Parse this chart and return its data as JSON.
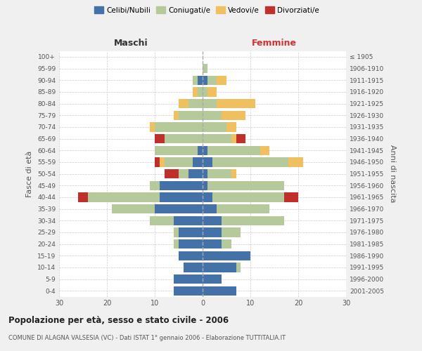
{
  "age_groups": [
    "0-4",
    "5-9",
    "10-14",
    "15-19",
    "20-24",
    "25-29",
    "30-34",
    "35-39",
    "40-44",
    "45-49",
    "50-54",
    "55-59",
    "60-64",
    "65-69",
    "70-74",
    "75-79",
    "80-84",
    "85-89",
    "90-94",
    "95-99",
    "100+"
  ],
  "birth_years": [
    "2001-2005",
    "1996-2000",
    "1991-1995",
    "1986-1990",
    "1981-1985",
    "1976-1980",
    "1971-1975",
    "1966-1970",
    "1961-1965",
    "1956-1960",
    "1951-1955",
    "1946-1950",
    "1941-1945",
    "1936-1940",
    "1931-1935",
    "1926-1930",
    "1921-1925",
    "1916-1920",
    "1911-1915",
    "1906-1910",
    "≤ 1905"
  ],
  "maschi": {
    "celibi": [
      6,
      6,
      4,
      5,
      5,
      5,
      6,
      10,
      9,
      9,
      3,
      2,
      1,
      0,
      0,
      0,
      0,
      0,
      1,
      0,
      0
    ],
    "coniugati": [
      0,
      0,
      0,
      0,
      1,
      1,
      5,
      9,
      15,
      2,
      2,
      6,
      9,
      8,
      10,
      5,
      3,
      1,
      1,
      0,
      0
    ],
    "vedovi": [
      0,
      0,
      0,
      0,
      0,
      0,
      0,
      0,
      0,
      0,
      0,
      1,
      0,
      0,
      1,
      1,
      2,
      1,
      0,
      0,
      0
    ],
    "divorziati": [
      0,
      0,
      0,
      0,
      0,
      0,
      0,
      0,
      2,
      0,
      3,
      1,
      0,
      2,
      0,
      0,
      0,
      0,
      0,
      0,
      0
    ]
  },
  "femmine": {
    "nubili": [
      7,
      4,
      7,
      10,
      4,
      4,
      4,
      3,
      2,
      1,
      1,
      2,
      1,
      0,
      0,
      0,
      0,
      0,
      1,
      0,
      0
    ],
    "coniugate": [
      0,
      0,
      1,
      0,
      2,
      4,
      13,
      11,
      15,
      16,
      5,
      16,
      11,
      6,
      5,
      4,
      3,
      1,
      2,
      1,
      0
    ],
    "vedove": [
      0,
      0,
      0,
      0,
      0,
      0,
      0,
      0,
      0,
      0,
      1,
      3,
      2,
      1,
      2,
      5,
      8,
      2,
      2,
      0,
      0
    ],
    "divorziate": [
      0,
      0,
      0,
      0,
      0,
      0,
      0,
      0,
      3,
      0,
      0,
      0,
      0,
      2,
      0,
      0,
      0,
      0,
      0,
      0,
      0
    ]
  },
  "colors": {
    "celibi_nubili": "#4472a8",
    "coniugati": "#b5c99a",
    "vedovi": "#f0c060",
    "divorziati": "#c0302a"
  },
  "xlim": 30,
  "title": "Popolazione per età, sesso e stato civile - 2006",
  "subtitle": "COMUNE DI ALAGNA VALSESIA (VC) - Dati ISTAT 1° gennaio 2006 - Elaborazione TUTTITALIA.IT",
  "ylabel_left": "Fasce di età",
  "ylabel_right": "Anni di nascita",
  "xlabel_maschi": "Maschi",
  "xlabel_femmine": "Femmine",
  "bg_color": "#f0f0f0",
  "plot_bg": "#ffffff",
  "grid_color": "#cccccc"
}
